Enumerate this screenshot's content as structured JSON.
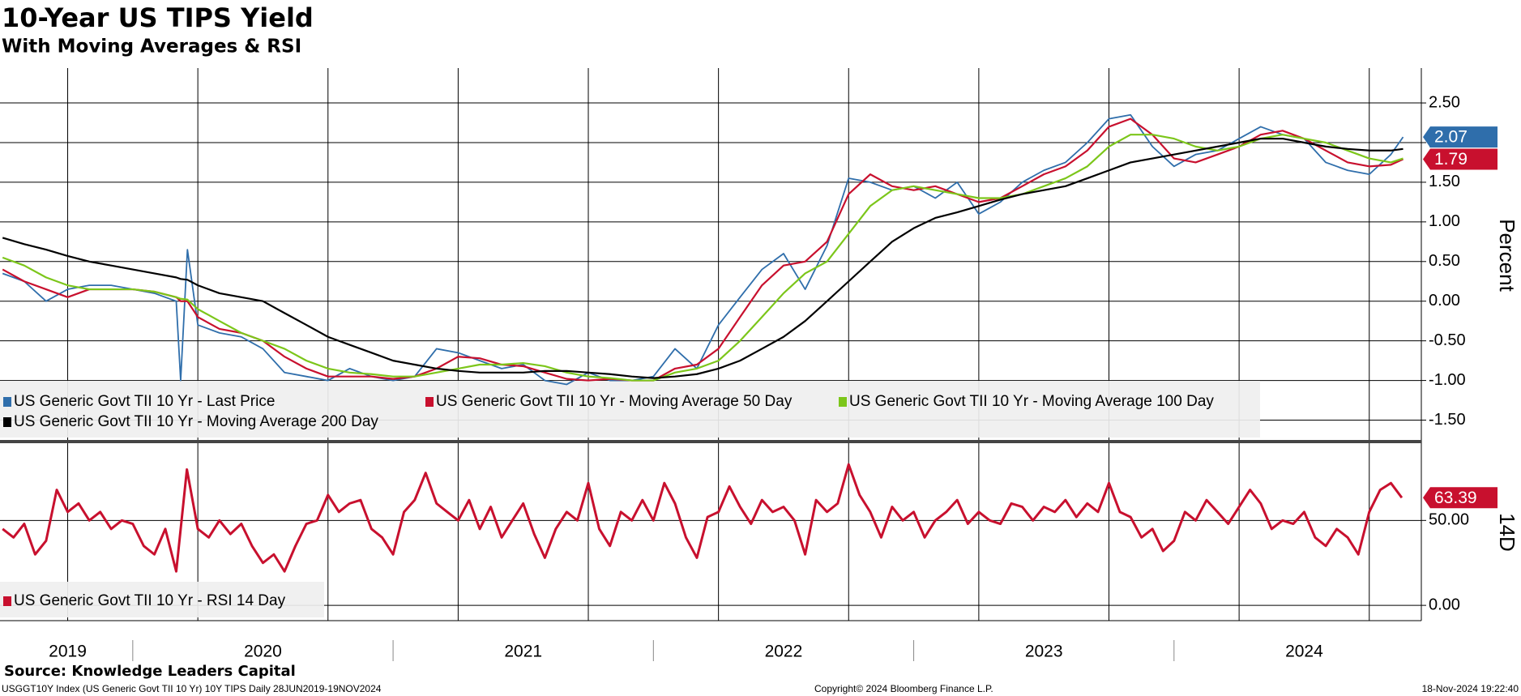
{
  "chart_data": [
    {
      "type": "line",
      "title": "10-Year US TIPS Yield",
      "subtitle": "With Moving Averages & RSI",
      "y_axis_label": "Percent",
      "x": [
        2019.5,
        2019.583,
        2019.667,
        2019.75,
        2019.833,
        2019.917,
        2020.0,
        2020.083,
        2020.167,
        2020.184,
        2020.21,
        2020.25,
        2020.333,
        2020.417,
        2020.5,
        2020.583,
        2020.667,
        2020.75,
        2020.833,
        2020.917,
        2021.0,
        2021.083,
        2021.167,
        2021.25,
        2021.333,
        2021.417,
        2021.5,
        2021.583,
        2021.667,
        2021.75,
        2021.833,
        2021.917,
        2022.0,
        2022.083,
        2022.167,
        2022.25,
        2022.333,
        2022.417,
        2022.5,
        2022.583,
        2022.667,
        2022.75,
        2022.833,
        2022.917,
        2023.0,
        2023.083,
        2023.167,
        2023.25,
        2023.333,
        2023.417,
        2023.5,
        2023.583,
        2023.667,
        2023.75,
        2023.833,
        2023.917,
        2024.0,
        2024.083,
        2024.167,
        2024.25,
        2024.333,
        2024.417,
        2024.5,
        2024.583,
        2024.667,
        2024.75,
        2024.833,
        2024.88
      ],
      "xlim": [
        2019.49,
        2024.95
      ],
      "xticks": [
        {
          "value": 2019.75,
          "label": "2019"
        },
        {
          "value": 2020.5,
          "label": "2020"
        },
        {
          "value": 2021.5,
          "label": "2021"
        },
        {
          "value": 2022.5,
          "label": "2022"
        },
        {
          "value": 2023.5,
          "label": "2023"
        },
        {
          "value": 2024.5,
          "label": "2024"
        }
      ],
      "xgrid": [
        2019.75,
        2020.25,
        2020.75,
        2021.25,
        2021.75,
        2022.25,
        2022.75,
        2023.25,
        2023.75,
        2024.25,
        2024.75
      ],
      "xseparators": [
        2020,
        2021,
        2022,
        2023,
        2024
      ],
      "ylim": [
        -1.74,
        2.94
      ],
      "yticks": [
        {
          "value": -1.5,
          "label": "-1.50"
        },
        {
          "value": -1,
          "label": "-1.00"
        },
        {
          "value": -0.5,
          "label": "-0.50"
        },
        {
          "value": 0,
          "label": "0.00"
        },
        {
          "value": 0.5,
          "label": "0.50"
        },
        {
          "value": 1,
          "label": "1.00"
        },
        {
          "value": 1.5,
          "label": "1.50"
        },
        {
          "value": 2,
          "label": "2.00"
        },
        {
          "value": 2.5,
          "label": "2.50"
        }
      ],
      "grid": true,
      "legend": "bottom-left",
      "series": [
        {
          "name": "US Generic Govt TII 10 Yr - Last Price",
          "color": "#2f6eab",
          "label_last": true,
          "values": [
            0.35,
            0.25,
            0.0,
            0.15,
            0.2,
            0.2,
            0.15,
            0.1,
            0.0,
            -1.0,
            0.65,
            -0.3,
            -0.4,
            -0.45,
            -0.6,
            -0.9,
            -0.95,
            -1.0,
            -0.85,
            -0.95,
            -1.0,
            -0.95,
            -0.6,
            -0.65,
            -0.75,
            -0.85,
            -0.8,
            -1.0,
            -1.05,
            -0.9,
            -1.0,
            -1.0,
            -0.95,
            -0.6,
            -0.85,
            -0.3,
            0.05,
            0.4,
            0.6,
            0.15,
            0.7,
            1.55,
            1.5,
            1.4,
            1.45,
            1.3,
            1.5,
            1.1,
            1.25,
            1.5,
            1.65,
            1.75,
            2.0,
            2.3,
            2.35,
            1.95,
            1.7,
            1.85,
            1.9,
            2.05,
            2.2,
            2.1,
            2.05,
            1.75,
            1.65,
            1.6,
            1.85,
            2.07
          ]
        },
        {
          "name": "US Generic Govt TII 10 Yr - Moving Average 50 Day",
          "color": "#c8102e",
          "label_last": true,
          "values": [
            0.4,
            0.25,
            0.15,
            0.05,
            0.15,
            0.15,
            0.15,
            0.12,
            0.05,
            0.0,
            0.0,
            -0.2,
            -0.35,
            -0.4,
            -0.5,
            -0.7,
            -0.85,
            -0.95,
            -0.95,
            -0.95,
            -0.98,
            -0.95,
            -0.85,
            -0.7,
            -0.72,
            -0.8,
            -0.82,
            -0.9,
            -0.98,
            -1.0,
            -0.98,
            -1.0,
            -1.0,
            -0.85,
            -0.8,
            -0.6,
            -0.2,
            0.2,
            0.45,
            0.5,
            0.75,
            1.35,
            1.6,
            1.45,
            1.4,
            1.45,
            1.35,
            1.25,
            1.3,
            1.45,
            1.6,
            1.7,
            1.9,
            2.2,
            2.3,
            2.1,
            1.8,
            1.75,
            1.85,
            1.95,
            2.1,
            2.15,
            2.05,
            1.9,
            1.75,
            1.7,
            1.72,
            1.79
          ]
        },
        {
          "name": "US Generic Govt TII 10 Yr - Moving Average 100 Day",
          "color": "#7cc61a",
          "label_last": false,
          "values": [
            0.55,
            0.45,
            0.3,
            0.2,
            0.15,
            0.15,
            0.15,
            0.12,
            0.05,
            0.03,
            0.02,
            -0.1,
            -0.25,
            -0.4,
            -0.5,
            -0.6,
            -0.75,
            -0.85,
            -0.9,
            -0.92,
            -0.95,
            -0.95,
            -0.9,
            -0.85,
            -0.8,
            -0.8,
            -0.78,
            -0.82,
            -0.9,
            -0.95,
            -0.97,
            -1.0,
            -1.0,
            -0.9,
            -0.85,
            -0.75,
            -0.5,
            -0.2,
            0.1,
            0.35,
            0.5,
            0.85,
            1.2,
            1.4,
            1.45,
            1.4,
            1.35,
            1.3,
            1.3,
            1.35,
            1.45,
            1.55,
            1.7,
            1.95,
            2.1,
            2.1,
            2.05,
            1.95,
            1.9,
            1.95,
            2.05,
            2.1,
            2.05,
            2.0,
            1.9,
            1.8,
            1.75,
            1.8
          ]
        },
        {
          "name": "US Generic Govt TII 10 Yr - Moving Average 200 Day",
          "color": "#000000",
          "label_last": false,
          "values": [
            0.8,
            0.72,
            0.65,
            0.57,
            0.5,
            0.45,
            0.4,
            0.35,
            0.3,
            0.28,
            0.27,
            0.2,
            0.1,
            0.05,
            0.0,
            -0.15,
            -0.3,
            -0.45,
            -0.55,
            -0.65,
            -0.75,
            -0.8,
            -0.85,
            -0.88,
            -0.9,
            -0.9,
            -0.9,
            -0.88,
            -0.88,
            -0.9,
            -0.92,
            -0.95,
            -0.97,
            -0.95,
            -0.92,
            -0.85,
            -0.75,
            -0.6,
            -0.45,
            -0.25,
            0.0,
            0.25,
            0.5,
            0.75,
            0.92,
            1.05,
            1.12,
            1.2,
            1.28,
            1.35,
            1.4,
            1.45,
            1.55,
            1.65,
            1.75,
            1.8,
            1.85,
            1.9,
            1.95,
            2.0,
            2.05,
            2.05,
            2.0,
            1.95,
            1.92,
            1.9,
            1.9,
            1.92
          ]
        }
      ]
    },
    {
      "type": "line",
      "y_axis_label": "14D",
      "x": [
        2019.5,
        2019.542,
        2019.583,
        2019.625,
        2019.667,
        2019.708,
        2019.75,
        2019.792,
        2019.833,
        2019.875,
        2019.917,
        2019.958,
        2020.0,
        2020.042,
        2020.083,
        2020.125,
        2020.167,
        2020.208,
        2020.25,
        2020.292,
        2020.333,
        2020.375,
        2020.417,
        2020.458,
        2020.5,
        2020.542,
        2020.583,
        2020.625,
        2020.667,
        2020.708,
        2020.75,
        2020.792,
        2020.833,
        2020.875,
        2020.917,
        2020.958,
        2021.0,
        2021.042,
        2021.083,
        2021.125,
        2021.167,
        2021.208,
        2021.25,
        2021.292,
        2021.333,
        2021.375,
        2021.417,
        2021.458,
        2021.5,
        2021.542,
        2021.583,
        2021.625,
        2021.667,
        2021.708,
        2021.75,
        2021.792,
        2021.833,
        2021.875,
        2021.917,
        2021.958,
        2022.0,
        2022.042,
        2022.083,
        2022.125,
        2022.167,
        2022.208,
        2022.25,
        2022.292,
        2022.333,
        2022.375,
        2022.417,
        2022.458,
        2022.5,
        2022.542,
        2022.583,
        2022.625,
        2022.667,
        2022.708,
        2022.75,
        2022.792,
        2022.833,
        2022.875,
        2022.917,
        2022.958,
        2023.0,
        2023.042,
        2023.083,
        2023.125,
        2023.167,
        2023.208,
        2023.25,
        2023.292,
        2023.333,
        2023.375,
        2023.417,
        2023.458,
        2023.5,
        2023.542,
        2023.583,
        2023.625,
        2023.667,
        2023.708,
        2023.75,
        2023.792,
        2023.833,
        2023.875,
        2023.917,
        2023.958,
        2024.0,
        2024.042,
        2024.083,
        2024.125,
        2024.167,
        2024.208,
        2024.25,
        2024.292,
        2024.333,
        2024.375,
        2024.417,
        2024.458,
        2024.5,
        2024.542,
        2024.583,
        2024.625,
        2024.667,
        2024.708,
        2024.75,
        2024.792,
        2024.833,
        2024.875
      ],
      "xlim": [
        2019.49,
        2024.95
      ],
      "ylim": [
        -9,
        95
      ],
      "yticks": [
        {
          "value": 0,
          "label": "0.00"
        },
        {
          "value": 50,
          "label": "50.00"
        }
      ],
      "grid": true,
      "legend": "bottom-left",
      "series": [
        {
          "name": "US Generic Govt TII 10 Yr - RSI 14 Day",
          "color": "#c8102e",
          "label_last": true,
          "values": [
            45,
            40,
            48,
            30,
            38,
            68,
            55,
            60,
            50,
            55,
            45,
            50,
            48,
            35,
            30,
            45,
            20,
            80,
            45,
            40,
            50,
            42,
            48,
            35,
            25,
            30,
            20,
            35,
            48,
            50,
            65,
            55,
            60,
            62,
            45,
            40,
            30,
            55,
            62,
            78,
            60,
            55,
            50,
            62,
            45,
            58,
            40,
            50,
            60,
            42,
            28,
            45,
            55,
            50,
            72,
            45,
            35,
            55,
            50,
            62,
            50,
            72,
            60,
            40,
            28,
            52,
            55,
            70,
            58,
            48,
            62,
            55,
            58,
            50,
            30,
            62,
            55,
            60,
            83,
            65,
            55,
            40,
            58,
            50,
            55,
            40,
            50,
            55,
            62,
            48,
            55,
            50,
            48,
            60,
            58,
            50,
            58,
            55,
            62,
            52,
            60,
            55,
            72,
            55,
            52,
            40,
            45,
            32,
            38,
            55,
            50,
            62,
            55,
            48,
            58,
            68,
            60,
            45,
            50,
            48,
            55,
            40,
            35,
            45,
            40,
            30,
            55,
            68,
            72,
            63.39
          ]
        }
      ]
    }
  ],
  "footer": {
    "source": "Source: Knowledge Leaders Capital",
    "description": "USGGT10Y Index (US Generic Govt TII 10 Yr) 10Y TIPS  Daily 28JUN2019-19NOV2024",
    "copyright": "Copyright© 2024 Bloomberg Finance L.P.",
    "timestamp": "18-Nov-2024 19:22:40"
  }
}
